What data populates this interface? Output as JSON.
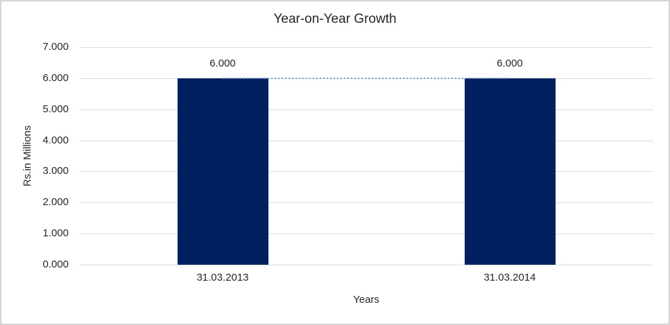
{
  "window": {
    "background": "#ffffff",
    "border_color": "#d5d5d5"
  },
  "chart_data": {
    "type": "bar",
    "title": "Year-on-Year Growth",
    "xlabel": "Years",
    "ylabel": "Rs.in Millions",
    "categories": [
      "31.03.2013",
      "31.03.2014"
    ],
    "series": [
      {
        "name": "growth-bars",
        "type": "bar",
        "values": [
          6.0,
          6.0
        ],
        "color": "#002060"
      },
      {
        "name": "growth-connector",
        "type": "line",
        "values": [
          6.0,
          6.0
        ],
        "color": "#6d9cd6",
        "style": "dotted"
      }
    ],
    "data_labels": [
      "6.000",
      "6.000"
    ],
    "ylim": [
      0,
      7
    ],
    "ytick_labels": [
      "0.000",
      "1.000",
      "2.000",
      "3.000",
      "4.000",
      "5.000",
      "6.000",
      "7.000"
    ],
    "grid": true,
    "gridline_color": "#dcdcdc",
    "legend": "none",
    "text_color": "#262626"
  }
}
